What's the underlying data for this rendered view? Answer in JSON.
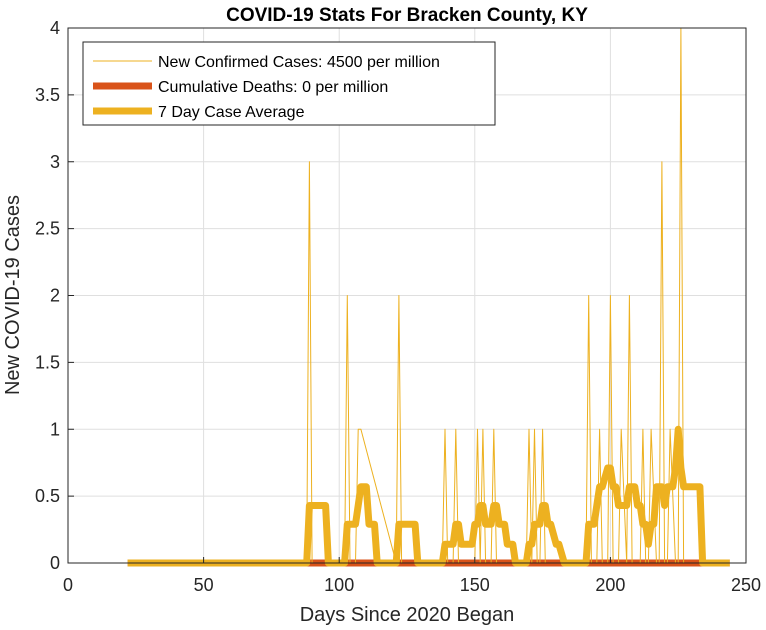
{
  "chart_data": {
    "type": "line",
    "title": "COVID-19 Stats For Bracken County, KY",
    "xlabel": "Days Since 2020 Began",
    "ylabel": "New COVID-19 Cases",
    "xlim": [
      0,
      250
    ],
    "ylim": [
      0,
      4
    ],
    "xticks": [
      "0",
      "50",
      "100",
      "150",
      "200",
      "250"
    ],
    "yticks": [
      "0",
      "0.5",
      "1",
      "1.5",
      "2",
      "2.5",
      "3",
      "3.5",
      "4"
    ],
    "grid": true,
    "legend_position": "top-left",
    "series": [
      {
        "name": "New Confirmed Cases: 4500 per million",
        "color": "#EDB120",
        "style": "thin-line",
        "x": [
          22,
          88,
          89,
          90,
          102,
          103,
          104,
          106,
          107,
          108,
          121,
          122,
          123,
          138,
          139,
          140,
          142,
          143,
          144,
          150,
          151,
          152,
          153,
          154,
          156,
          157,
          158,
          169,
          170,
          171,
          172,
          173,
          174,
          175,
          176,
          177,
          191,
          192,
          193,
          195,
          196,
          197,
          199,
          200,
          201,
          203,
          204,
          206,
          207,
          208,
          211,
          212,
          213,
          214,
          215,
          217,
          218,
          219,
          220,
          221,
          222,
          224,
          225,
          226,
          227,
          228,
          229,
          244
        ],
        "y": [
          0,
          0,
          3,
          0,
          0,
          2,
          0,
          0,
          1,
          1,
          0,
          2,
          0,
          0,
          1,
          0,
          0,
          1,
          0,
          0,
          1,
          0,
          1,
          0,
          0,
          1,
          0,
          0,
          1,
          0,
          1,
          0,
          0,
          1,
          0,
          0,
          0,
          2,
          0,
          0,
          1,
          0,
          0,
          2,
          0,
          0,
          1,
          0,
          2,
          0,
          0,
          1,
          0,
          0,
          1,
          0,
          0,
          3,
          0,
          0,
          1,
          0,
          0,
          4,
          0,
          0,
          0,
          0
        ]
      },
      {
        "name": "Cumulative Deaths: 0 per million",
        "color": "#D95319",
        "style": "thick-line",
        "x": [
          22,
          244
        ],
        "y": [
          0,
          0
        ]
      },
      {
        "name": "7 Day Case Average",
        "color": "#EDB120",
        "style": "thick-line",
        "x": [
          22,
          88,
          89,
          90,
          95,
          96,
          102,
          103,
          104,
          106,
          107,
          108,
          110,
          111,
          113,
          114,
          121,
          122,
          123,
          128,
          129,
          138,
          139,
          140,
          142,
          143,
          144,
          145,
          146,
          149,
          150,
          151,
          152,
          153,
          154,
          156,
          157,
          158,
          159,
          161,
          162,
          164,
          165,
          169,
          170,
          171,
          172,
          173,
          174,
          175,
          176,
          177,
          178,
          180,
          181,
          183,
          184,
          191,
          192,
          193,
          194,
          195,
          196,
          197,
          199,
          200,
          201,
          202,
          203,
          204,
          206,
          207,
          208,
          209,
          210,
          211,
          212,
          213,
          214,
          215,
          216,
          217,
          218,
          219,
          220,
          221,
          222,
          223,
          224,
          225,
          226,
          227,
          228,
          229,
          230,
          233,
          234,
          244
        ],
        "y": [
          0,
          0,
          0.43,
          0.43,
          0.43,
          0,
          0,
          0.29,
          0.29,
          0.29,
          0.43,
          0.57,
          0.57,
          0.29,
          0.29,
          0,
          0,
          0.29,
          0.29,
          0.29,
          0,
          0,
          0.14,
          0.14,
          0.14,
          0.29,
          0.29,
          0.14,
          0.14,
          0.14,
          0.29,
          0.29,
          0.43,
          0.43,
          0.29,
          0.29,
          0.43,
          0.43,
          0.29,
          0.29,
          0.14,
          0.14,
          0,
          0,
          0.14,
          0.14,
          0.29,
          0.29,
          0.29,
          0.43,
          0.43,
          0.29,
          0.29,
          0.14,
          0.14,
          0,
          0,
          0,
          0.29,
          0.29,
          0.29,
          0.43,
          0.57,
          0.57,
          0.71,
          0.71,
          0.57,
          0.57,
          0.43,
          0.43,
          0.43,
          0.57,
          0.57,
          0.57,
          0.43,
          0.43,
          0.29,
          0.29,
          0.14,
          0.29,
          0.29,
          0.57,
          0.57,
          0.57,
          0.43,
          0.57,
          0.57,
          0.57,
          0.71,
          1.0,
          0.71,
          0.57,
          0.57,
          0.57,
          0.57,
          0.57,
          0,
          0
        ]
      }
    ]
  }
}
